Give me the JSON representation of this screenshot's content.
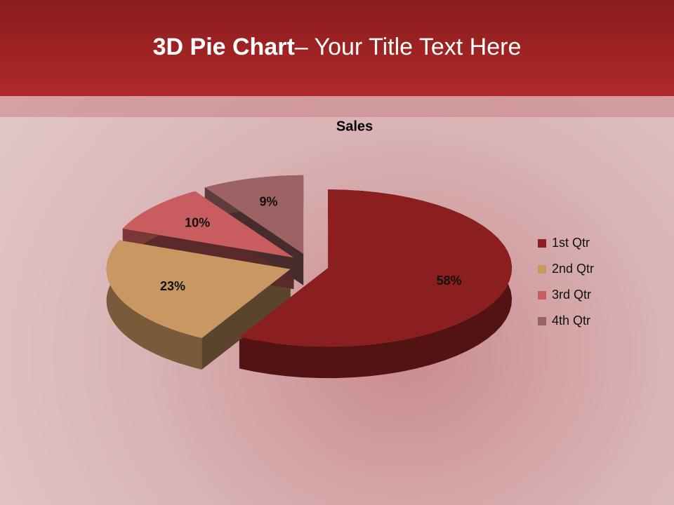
{
  "slide_title": {
    "bold": "3D Pie Chart",
    "rest": "– Your Title Text Here"
  },
  "chart_data": {
    "type": "pie",
    "title": "Sales",
    "categories": [
      "1st Qtr",
      "2nd Qtr",
      "3rd Qtr",
      "4th Qtr"
    ],
    "values": [
      58,
      23,
      10,
      9
    ],
    "value_labels": [
      "58%",
      "23%",
      "10%",
      "9%"
    ],
    "colors": [
      "#8b1f20",
      "#c99762",
      "#c95c5e",
      "#9c6264"
    ],
    "legend": "right"
  }
}
